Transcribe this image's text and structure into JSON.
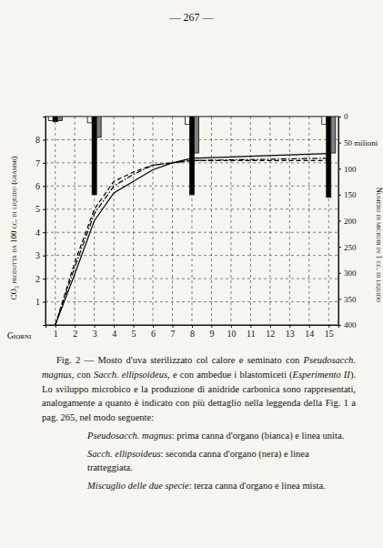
{
  "page_number": "— 267 —",
  "chart_data": {
    "type": "line",
    "x": [
      1,
      2,
      3,
      4,
      5,
      6,
      7,
      8,
      15
    ],
    "xlim": [
      0.5,
      15.5
    ],
    "xticks": [
      1,
      2,
      3,
      4,
      5,
      6,
      7,
      8,
      9,
      10,
      11,
      12,
      13,
      14,
      15
    ],
    "xlabel": "Giorni",
    "ylim": [
      0,
      9
    ],
    "yticks": [
      1,
      2,
      3,
      4,
      5,
      6,
      7,
      8
    ],
    "ylabel": "CO₂ prodotta da 100 cc. di liquido (grammi)",
    "y2lim": [
      0,
      400
    ],
    "y2ticks": [
      0,
      {
        "value": 50,
        "label": "50 milioni"
      },
      100,
      150,
      200,
      250,
      300,
      350,
      400
    ],
    "y2label": "Numero di microbi in 1 cc. di liquido",
    "grid": true,
    "series": [
      {
        "name": "Pseudosacch. magnus",
        "type": "line",
        "color": "#000000",
        "line_style": "solid",
        "values": [
          0,
          2.2,
          4.5,
          5.7,
          6.2,
          6.7,
          7.0,
          7.2,
          7.4
        ]
      },
      {
        "name": "Sacch. ellipsoideus",
        "type": "line",
        "color": "#000000",
        "line_style": "dashed",
        "values": [
          0,
          2.7,
          5.0,
          6.2,
          6.6,
          6.9,
          7.0,
          7.1,
          7.1
        ]
      },
      {
        "name": "Miscuglio delle due specie",
        "type": "line",
        "color": "#000000",
        "line_style": "dashdot",
        "values": [
          0,
          2.5,
          4.8,
          6.0,
          6.5,
          6.9,
          7.0,
          7.1,
          7.2
        ]
      },
      {
        "type": "bar",
        "axis": "y2",
        "color": "#ffffff",
        "x": [
          1,
          3,
          8,
          15
        ],
        "values": [
          8,
          12,
          15,
          15
        ]
      },
      {
        "type": "bar",
        "axis": "y2",
        "color": "#000000",
        "x": [
          1,
          3,
          8,
          15
        ],
        "values": [
          10,
          150,
          150,
          155
        ]
      },
      {
        "type": "bar",
        "axis": "y2",
        "color": "#808080",
        "x": [
          1,
          3,
          8,
          15
        ],
        "values": [
          8,
          40,
          70,
          70
        ]
      }
    ]
  },
  "caption": {
    "segments": [
      {
        "text": "Fig. 2 — Mosto d'uva sterilizzato col calore e seminato con ",
        "style": "normal"
      },
      {
        "text": "Pseudosacch. magnus",
        "style": "italic"
      },
      {
        "text": ", con ",
        "style": "normal"
      },
      {
        "text": "Sacch. ellipsoideus",
        "style": "italic"
      },
      {
        "text": ", e con ambedue i blastomiceti (",
        "style": "normal"
      },
      {
        "text": "Esperimento II",
        "style": "italic"
      },
      {
        "text": "). Lo sviluppo microbico e la produzione di anidride carbonica sono rappresentati, analogamente a quanto è indicato con più dettaglio nella leggenda della Fig. 1 a pag. 265, nel modo seguente:",
        "style": "normal"
      }
    ],
    "legend": [
      {
        "text": ": prima canna d'organo (bianca) e linea unita."
      },
      {
        "text": ": seconda canna d'organo (nera) e linea tratteggiata."
      },
      {
        "text": ": terza canna d'organo e linea mista."
      }
    ]
  }
}
